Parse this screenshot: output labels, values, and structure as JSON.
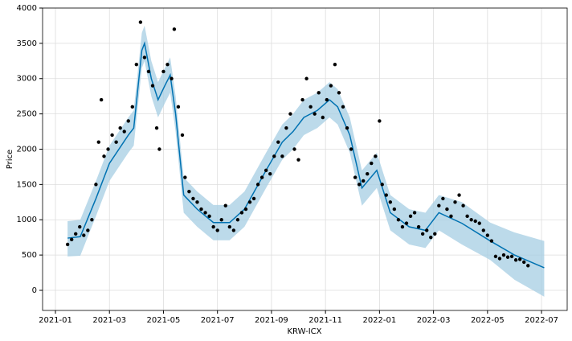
{
  "chart_data": {
    "type": "scatter",
    "xlabel": "KRW-ICX",
    "ylabel": "Price",
    "xlim": [
      -0.476,
      18.95
    ],
    "xticks": [
      {
        "value": 0,
        "label": "2021-01"
      },
      {
        "value": 2,
        "label": "2021-03"
      },
      {
        "value": 4,
        "label": "2021-05"
      },
      {
        "value": 6,
        "label": "2021-07"
      },
      {
        "value": 8,
        "label": "2021-09"
      },
      {
        "value": 10,
        "label": "2021-11"
      },
      {
        "value": 12,
        "label": "2022-01"
      },
      {
        "value": 14,
        "label": "2022-03"
      },
      {
        "value": 16,
        "label": "2022-05"
      },
      {
        "value": 18,
        "label": "2022-07"
      }
    ],
    "ylim": [
      -285,
      4000
    ],
    "yticks": [
      0,
      500,
      1000,
      1500,
      2000,
      2500,
      3000,
      3500,
      4000
    ],
    "grid": true,
    "series": [
      {
        "type": "line",
        "color": "#0072B2",
        "band_color": "#A6CEE3",
        "x": [
          0.45,
          0.92,
          1.5,
          2.0,
          2.7,
          2.9,
          3.2,
          3.3,
          3.55,
          3.8,
          4.05,
          4.25,
          4.45,
          4.75,
          5.25,
          5.85,
          6.45,
          7.0,
          7.8,
          8.4,
          8.8,
          9.2,
          9.7,
          10.15,
          10.45,
          10.9,
          11.35,
          11.9,
          12.4,
          13.1,
          13.7,
          14.2,
          15.05,
          16.1,
          17.0,
          18.1
        ],
        "values": [
          740,
          760,
          1300,
          1800,
          2200,
          2300,
          3400,
          3500,
          3000,
          2700,
          2900,
          3050,
          2500,
          1350,
          1150,
          960,
          960,
          1150,
          1700,
          2100,
          2250,
          2450,
          2550,
          2700,
          2600,
          2200,
          1450,
          1700,
          1100,
          900,
          850,
          1100,
          950,
          700,
          500,
          320
        ],
        "lower": [
          480,
          490,
          1050,
          1550,
          1950,
          2050,
          3150,
          3250,
          2750,
          2450,
          2650,
          2800,
          2250,
          1100,
          900,
          710,
          710,
          900,
          1450,
          1850,
          2000,
          2200,
          2300,
          2450,
          2350,
          1950,
          1200,
          1450,
          850,
          650,
          600,
          850,
          650,
          430,
          150,
          -90
        ],
        "upper": [
          980,
          1000,
          1550,
          2050,
          2450,
          2550,
          3650,
          3750,
          3250,
          2950,
          3150,
          3300,
          2750,
          1600,
          1400,
          1210,
          1210,
          1400,
          1950,
          2350,
          2500,
          2700,
          2800,
          2950,
          2850,
          2450,
          1700,
          1950,
          1350,
          1150,
          1100,
          1350,
          1250,
          960,
          820,
          700
        ]
      },
      {
        "type": "scatter",
        "color": "#000000",
        "x": [
          0.45,
          0.6,
          0.75,
          0.9,
          1.05,
          1.2,
          1.35,
          1.5,
          1.6,
          1.7,
          1.8,
          1.95,
          2.1,
          2.25,
          2.4,
          2.55,
          2.7,
          2.85,
          3.0,
          3.15,
          3.3,
          3.45,
          3.6,
          3.75,
          3.85,
          4.0,
          4.15,
          4.3,
          4.4,
          4.55,
          4.7,
          4.8,
          4.95,
          5.1,
          5.25,
          5.4,
          5.55,
          5.7,
          5.85,
          6.0,
          6.15,
          6.3,
          6.45,
          6.6,
          6.75,
          6.9,
          7.05,
          7.2,
          7.35,
          7.5,
          7.65,
          7.8,
          7.95,
          8.1,
          8.25,
          8.4,
          8.55,
          8.7,
          8.85,
          9.0,
          9.15,
          9.3,
          9.45,
          9.6,
          9.75,
          9.9,
          10.05,
          10.2,
          10.35,
          10.5,
          10.65,
          10.8,
          10.95,
          11.1,
          11.25,
          11.4,
          11.55,
          11.7,
          11.85,
          12.0,
          12.1,
          12.25,
          12.4,
          12.55,
          12.7,
          12.85,
          13.0,
          13.15,
          13.3,
          13.45,
          13.6,
          13.75,
          13.9,
          14.05,
          14.2,
          14.35,
          14.5,
          14.65,
          14.8,
          14.95,
          15.1,
          15.25,
          15.4,
          15.55,
          15.7,
          15.85,
          16.0,
          16.15,
          16.3,
          16.45,
          16.6,
          16.75,
          16.9,
          17.05,
          17.2,
          17.35,
          17.5
        ],
        "values": [
          650,
          720,
          800,
          900,
          780,
          850,
          1000,
          1500,
          2100,
          2700,
          1900,
          2000,
          2200,
          2100,
          2300,
          2250,
          2400,
          2600,
          3200,
          3800,
          3300,
          3100,
          2900,
          2300,
          2000,
          3100,
          3200,
          3000,
          3700,
          2600,
          2200,
          1600,
          1400,
          1300,
          1250,
          1150,
          1100,
          1050,
          900,
          850,
          1000,
          1200,
          900,
          850,
          1000,
          1100,
          1150,
          1250,
          1300,
          1500,
          1600,
          1700,
          1650,
          1900,
          2100,
          1900,
          2300,
          2500,
          2000,
          1850,
          2700,
          3000,
          2600,
          2500,
          2800,
          2450,
          2700,
          2900,
          3200,
          2800,
          2600,
          2300,
          2000,
          1600,
          1500,
          1550,
          1650,
          1800,
          1900,
          2400,
          1500,
          1350,
          1250,
          1150,
          1000,
          900,
          950,
          1050,
          1100,
          900,
          800,
          850,
          750,
          800,
          1200,
          1300,
          1150,
          1050,
          1250,
          1350,
          1200,
          1050,
          1000,
          980,
          950,
          850,
          780,
          700,
          480,
          450,
          500,
          470,
          480,
          430,
          440,
          400,
          350
        ]
      }
    ]
  }
}
